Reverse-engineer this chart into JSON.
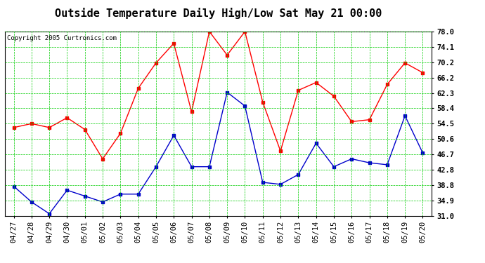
{
  "title": "Outside Temperature Daily High/Low Sat May 21 00:00",
  "copyright": "Copyright 2005 Curtronics.com",
  "x_labels": [
    "04/27",
    "04/28",
    "04/29",
    "04/30",
    "05/01",
    "05/02",
    "05/03",
    "05/04",
    "05/05",
    "05/06",
    "05/07",
    "05/08",
    "05/09",
    "05/10",
    "05/11",
    "05/12",
    "05/13",
    "05/14",
    "05/15",
    "05/16",
    "05/17",
    "05/18",
    "05/19",
    "05/20"
  ],
  "high_temps": [
    53.5,
    54.5,
    53.5,
    56.0,
    53.0,
    45.5,
    52.0,
    63.5,
    70.0,
    75.0,
    57.5,
    78.0,
    72.0,
    78.0,
    60.0,
    47.5,
    63.0,
    65.0,
    61.5,
    55.0,
    55.5,
    64.5,
    70.0,
    67.5
  ],
  "low_temps": [
    38.5,
    34.5,
    31.5,
    37.5,
    36.0,
    34.5,
    36.5,
    36.5,
    43.5,
    51.5,
    43.5,
    43.5,
    62.5,
    59.0,
    39.5,
    39.0,
    41.5,
    49.5,
    43.5,
    45.5,
    44.5,
    44.0,
    56.5,
    47.0
  ],
  "high_color": "#ff0000",
  "low_color": "#0000cc",
  "grid_color": "#00cc00",
  "bg_color": "#ffffff",
  "plot_bg_color": "#ffffff",
  "ylim": [
    31.0,
    78.0
  ],
  "yticks": [
    31.0,
    34.9,
    38.8,
    42.8,
    46.7,
    50.6,
    54.5,
    58.4,
    62.3,
    66.2,
    70.2,
    74.1,
    78.0
  ],
  "title_fontsize": 11,
  "tick_fontsize": 7.5,
  "copyright_fontsize": 6.5
}
